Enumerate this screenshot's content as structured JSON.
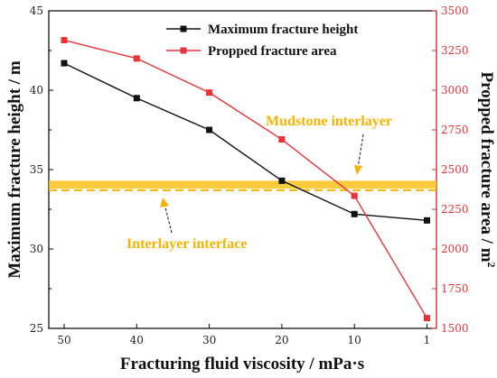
{
  "chart_data": {
    "type": "line",
    "x": [
      50,
      40,
      30,
      20,
      10,
      1
    ],
    "xticks": [
      "50",
      "40",
      "30",
      "20",
      "10",
      "1"
    ],
    "xlabel": "Fracturing fluid viscosity / mPa·s",
    "ylabel_left": "Maximum fracture height / m",
    "ylabel_right": "Propped fracture area / m",
    "ylabel_right_sup": "2",
    "ylim_left": [
      25,
      45
    ],
    "yticks_left": [
      25,
      30,
      35,
      40,
      45
    ],
    "ylim_right": [
      1500,
      3500
    ],
    "yticks_right": [
      1500,
      1750,
      2000,
      2250,
      2500,
      2750,
      3000,
      3250,
      3500
    ],
    "series": [
      {
        "name": "Maximum fracture height",
        "axis": "left",
        "color": "#111111",
        "marker": "square",
        "values": [
          41.7,
          39.5,
          37.5,
          34.3,
          32.2,
          31.8
        ]
      },
      {
        "name": "Propped fracture area",
        "axis": "right",
        "color": "#e8323a",
        "marker": "square",
        "values": [
          3315,
          3200,
          2985,
          2690,
          2335,
          1565
        ]
      }
    ],
    "legend_position": "top-right",
    "bands": [
      {
        "label": "Mudstone interlayer",
        "axis": "left",
        "range": [
          33.8,
          34.3
        ],
        "color": "#f8c21b",
        "style": "band"
      },
      {
        "label": "Interlayer interface",
        "axis": "left",
        "value": 33.7,
        "color": "#f4b400",
        "style": "dashed"
      }
    ],
    "grid": false
  }
}
